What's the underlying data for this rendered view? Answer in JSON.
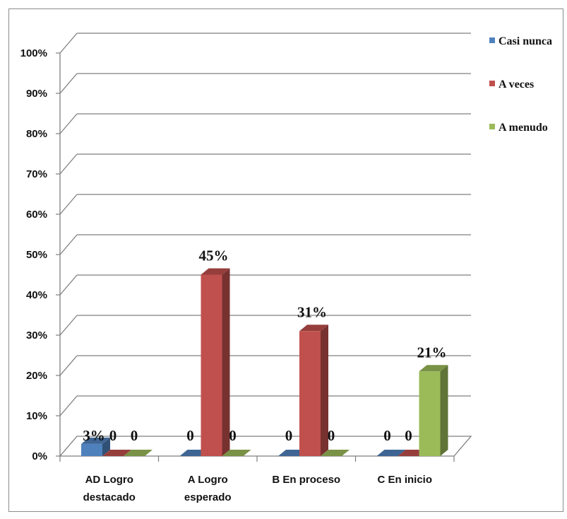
{
  "chart_data": {
    "type": "bar",
    "categories": [
      [
        "AD   Logro",
        "destacado"
      ],
      [
        "A Logro",
        "esperado"
      ],
      [
        "B  En proceso"
      ],
      [
        "C   En inicio"
      ]
    ],
    "series": [
      {
        "name": "Casi nunca",
        "color": "#4f81bd",
        "values": [
          3,
          0,
          0,
          0
        ],
        "labels": [
          "3%",
          "0",
          "0",
          "0"
        ]
      },
      {
        "name": "A veces",
        "color": "#c0504d",
        "values": [
          0,
          45,
          31,
          0
        ],
        "labels": [
          "0",
          "45%",
          "31%",
          "0"
        ]
      },
      {
        "name": "A menudo",
        "color": "#9bbb59",
        "values": [
          0,
          0,
          0,
          21
        ],
        "labels": [
          "0",
          "0",
          "0",
          "21%"
        ]
      }
    ],
    "yticks": [
      "0%",
      "10%",
      "20%",
      "30%",
      "40%",
      "50%",
      "60%",
      "70%",
      "80%",
      "90%",
      "100%"
    ],
    "ylim": [
      0,
      100
    ],
    "grid": true,
    "legend_position": "right"
  }
}
